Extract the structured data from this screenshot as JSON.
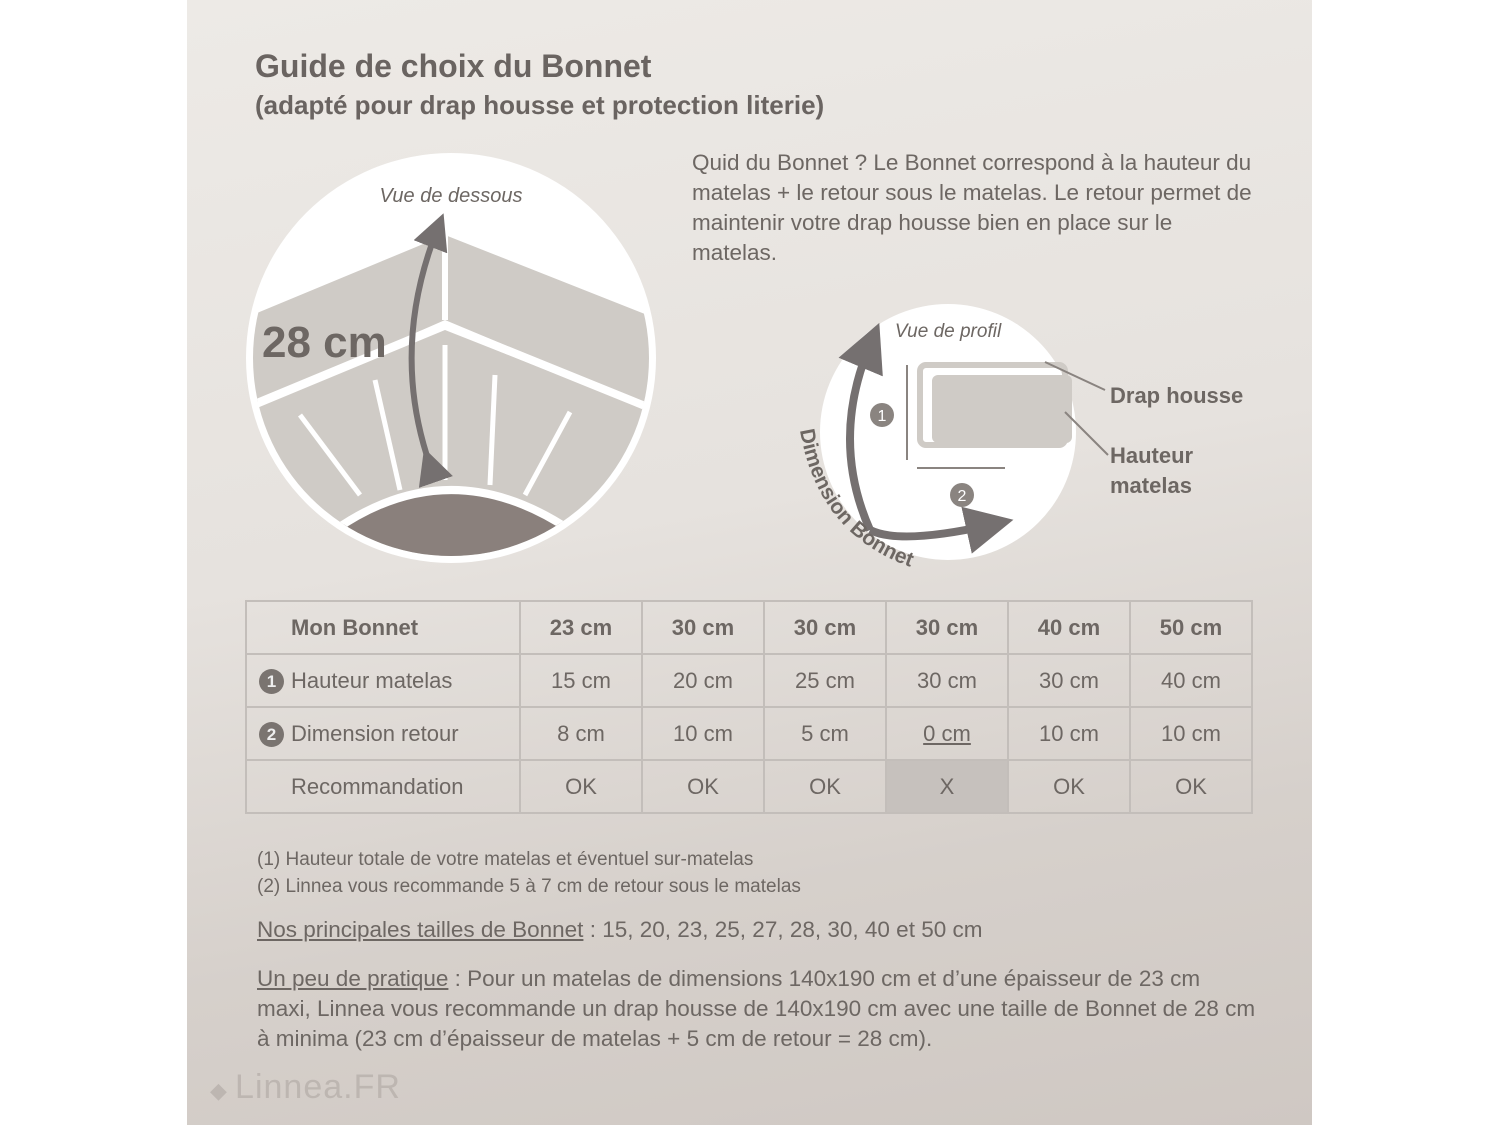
{
  "title": "Guide de choix du Bonnet",
  "subtitle": "(adapté pour drap housse et protection literie)",
  "intro": "Quid du Bonnet ? Le Bonnet correspond à la hauteur du matelas + le retour sous le matelas. Le retour permet de maintenir votre drap housse bien en place sur le matelas.",
  "diagram_bottom": {
    "caption": "Vue de dessous",
    "measure": "28 cm"
  },
  "diagram_profile": {
    "caption": "Vue de profil",
    "arc_label": "Dimension Bonnet",
    "label_sheet": "Drap housse",
    "label_height_1": "Hauteur",
    "label_height_2": "matelas",
    "marker1": "1",
    "marker2": "2"
  },
  "table": {
    "header": [
      "Mon Bonnet",
      "23 cm",
      "30 cm",
      "30 cm",
      "30 cm",
      "40 cm",
      "50 cm"
    ],
    "rows": [
      {
        "num": "1",
        "label": "Hauteur matelas",
        "values": [
          "15 cm",
          "20 cm",
          "25 cm",
          "30 cm",
          "30 cm",
          "40 cm"
        ]
      },
      {
        "num": "2",
        "label": "Dimension retour",
        "values": [
          "8 cm",
          "10 cm",
          "5 cm",
          "0 cm",
          "10 cm",
          "10 cm"
        ]
      },
      {
        "num": "",
        "label": "Recommandation",
        "values": [
          "OK",
          "OK",
          "OK",
          "X",
          "OK",
          "OK"
        ]
      }
    ]
  },
  "notes": [
    "(1) Hauteur totale de votre matelas et éventuel sur-matelas",
    "(2) Linnea vous recommande 5 à 7 cm de retour sous le matelas"
  ],
  "sizes": {
    "label": "Nos principales tailles de Bonnet",
    "text": " : 15, 20, 23, 25, 27, 28, 30, 40 et 50 cm"
  },
  "practice": {
    "label": "Un peu de pratique",
    "text": " : Pour un matelas de dimensions 140x190 cm et d’une épaisseur de 23 cm maxi, Linnea vous recommande un drap housse de 140x190 cm avec une taille de Bonnet de 28 cm à minima (23 cm d’épaisseur de matelas + 5 cm de retour = 28 cm)."
  },
  "logo": "Linnea.FR"
}
